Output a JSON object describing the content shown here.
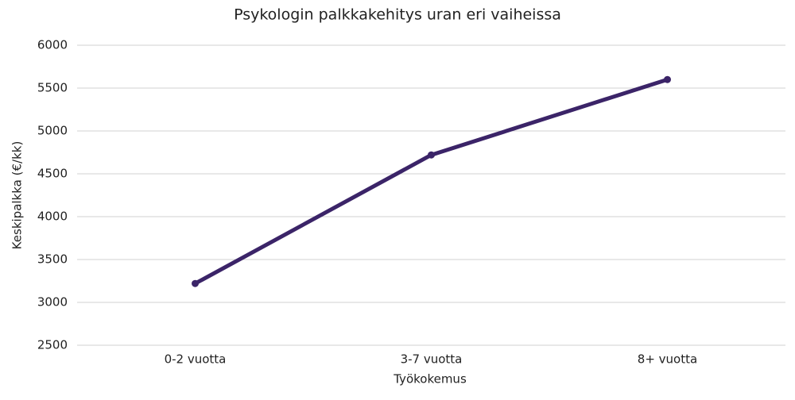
{
  "chart_data": {
    "type": "line",
    "title": "Psykologin palkkakehitys uran eri vaiheissa",
    "x_label": "Työkokemus",
    "y_label": "Keskipalkka (€/kk)",
    "categories": [
      "0-2 vuotta",
      "3-7 vuotta",
      "8+ vuotta"
    ],
    "series": [
      {
        "name": "Keskipalkka",
        "color": "#3b2468",
        "values": [
          3220,
          4720,
          5600
        ]
      }
    ],
    "ylim": [
      2500,
      6000
    ],
    "yticks": [
      2500,
      3000,
      3500,
      4000,
      4500,
      5000,
      5500,
      6000
    ],
    "grid": true
  }
}
